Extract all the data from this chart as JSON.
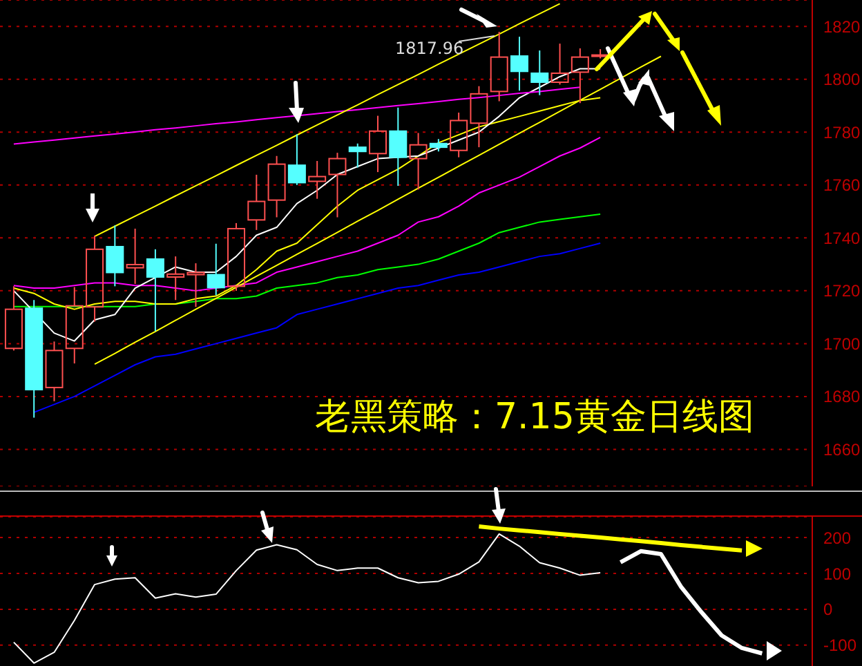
{
  "chart_data": [
    {
      "type": "candlestick",
      "title": "老黑策略：7.15黄金日线图",
      "categories": [
        null,
        null,
        null,
        null,
        null,
        null,
        null,
        null,
        null,
        null,
        null,
        null,
        null,
        null,
        null,
        null,
        null,
        null,
        null,
        null,
        null,
        null,
        null,
        null,
        null,
        null,
        null,
        null,
        null,
        null,
        null,
        null,
        null,
        null,
        null,
        null,
        null,
        null,
        null,
        null
      ],
      "ohlc": [
        [
          1698.2,
          1721.7,
          1697.4,
          1713.0
        ],
        [
          1713.4,
          1716.5,
          1672.0,
          1682.6
        ],
        [
          1683.4,
          1700.8,
          1678.2,
          1697.4
        ],
        [
          1698.2,
          1721.4,
          1692.5,
          1714.3
        ],
        [
          1713.9,
          1740.9,
          1708.3,
          1735.7
        ],
        [
          1736.7,
          1744.7,
          1721.7,
          1726.9
        ],
        [
          1728.7,
          1743.5,
          1722.6,
          1729.9
        ],
        [
          1732.0,
          1735.7,
          1704.7,
          1725.2
        ],
        [
          1725.2,
          1733.0,
          1716.5,
          1726.3
        ],
        [
          1726.1,
          1730.4,
          1713.9,
          1726.9
        ],
        [
          1726.1,
          1737.8,
          1718.3,
          1721.2
        ],
        [
          1721.7,
          1745.6,
          1720.0,
          1743.5
        ],
        [
          1746.8,
          1763.9,
          1743.0,
          1753.8
        ],
        [
          1754.3,
          1771.0,
          1747.8,
          1767.9
        ],
        [
          1767.5,
          1779.2,
          1760.0,
          1760.9
        ],
        [
          1761.4,
          1769.1,
          1754.8,
          1763.2
        ],
        [
          1764.0,
          1772.2,
          1747.8,
          1770.0
        ],
        [
          1774.3,
          1775.7,
          1766.6,
          1772.7
        ],
        [
          1771.9,
          1786.2,
          1764.9,
          1780.4
        ],
        [
          1780.4,
          1789.3,
          1759.7,
          1770.5
        ],
        [
          1770.0,
          1779.7,
          1758.3,
          1775.2
        ],
        [
          1775.7,
          1777.4,
          1772.7,
          1774.3
        ],
        [
          1773.1,
          1787.4,
          1770.5,
          1784.4
        ],
        [
          1783.4,
          1797.4,
          1774.3,
          1794.5
        ],
        [
          1795.4,
          1817.96,
          1791.7,
          1808.4
        ],
        [
          1808.8,
          1816.1,
          1795.7,
          1803.0
        ],
        [
          1802.3,
          1810.9,
          1794.0,
          1798.9
        ],
        [
          1798.9,
          1813.5,
          1798.0,
          1802.3
        ],
        [
          1802.7,
          1811.7,
          1791.0,
          1808.4
        ],
        [
          1809.0,
          1811.4,
          1807.9,
          1809.2
        ],
        null,
        null,
        null,
        null,
        null,
        null,
        null,
        null,
        null,
        null
      ],
      "colors": [
        "#ff5050",
        "#55ffff",
        "#ff5050",
        "#ff5050",
        "#ff5050",
        "#55ffff",
        "#ff5050",
        "#55ffff",
        "#ff5050",
        "#ff5050",
        "#55ffff",
        "#ff5050",
        "#ff5050",
        "#ff5050",
        "#55ffff",
        "#ff5050",
        "#ff5050",
        "#55ffff",
        "#ff5050",
        "#55ffff",
        "#ff5050",
        "#55ffff",
        "#ff5050",
        "#ff5050",
        "#ff5050",
        "#55ffff",
        "#55ffff",
        "#ff5050",
        "#ff5050",
        "#ff5050",
        null,
        null,
        null,
        null,
        null,
        null,
        null,
        null,
        null,
        null
      ],
      "series": [
        {
          "type": "line",
          "color": "#0000ff",
          "values": [
            null,
            1674,
            1677,
            1680,
            1684,
            1688,
            1692,
            1695,
            1696,
            1698,
            1700,
            1702,
            1704,
            1706,
            1711,
            1713,
            1715,
            1717,
            1719,
            1721,
            1722,
            1724,
            1726,
            1727,
            1729,
            1731,
            1733,
            1734,
            1736,
            1738,
            null,
            null,
            null,
            null,
            null,
            null,
            null,
            null,
            null,
            null
          ]
        },
        {
          "type": "line",
          "color": "#00ff00",
          "values": [
            1714,
            1714,
            1714,
            1714,
            1714,
            1714,
            1714,
            1715,
            1715,
            1716,
            1717,
            1717,
            1718,
            1721,
            1722,
            1723,
            1725,
            1726,
            1728,
            1729,
            1730,
            1732,
            1735,
            1738,
            1742,
            1744,
            1746,
            1747,
            1748,
            1749,
            null,
            null,
            null,
            null,
            null,
            null,
            null,
            null,
            null,
            null
          ]
        },
        {
          "type": "line",
          "color": "#ff00ff",
          "values": [
            1722,
            1721,
            1721,
            1722,
            1723,
            1723,
            1722,
            1722,
            1721,
            1720,
            1721,
            1722,
            1723,
            1727,
            1729,
            1731,
            1733,
            1735,
            1738,
            1741,
            1746,
            1748,
            1752,
            1757,
            1760,
            1763,
            1767,
            1771,
            1774,
            1778,
            null,
            null,
            null,
            null,
            null,
            null,
            null,
            null,
            null,
            null
          ]
        },
        {
          "type": "line",
          "color": "#ffff00",
          "values": [
            1721,
            1719,
            1715,
            1713,
            1715,
            1716,
            1716,
            1715,
            1715,
            1717,
            1718,
            1722,
            1728,
            1735,
            1738,
            1745,
            1752,
            1758,
            1762,
            1766,
            1771,
            1776,
            1779,
            1782,
            1784,
            1786,
            1788,
            1790,
            1792,
            1793,
            null,
            null,
            null,
            null,
            null,
            null,
            null,
            null,
            null,
            null
          ]
        },
        {
          "type": "line",
          "color": "#ffffff",
          "values": [
            1720,
            null,
            1704,
            1701,
            1709,
            1711,
            1721,
            null,
            1729,
            1727,
            1727,
            1733,
            1741,
            1744,
            1753,
            1758,
            1764,
            1767,
            1770,
            null,
            1771,
            1774,
            1777,
            1780,
            1786,
            1793,
            1797,
            1801,
            1804,
            1804,
            null,
            null,
            null,
            null,
            null,
            null,
            null,
            null,
            null,
            null
          ]
        },
        {
          "type": "line",
          "color": "#ff00ff",
          "values": [
            1775.5,
            1776.3,
            1777.0,
            1777.8,
            1778.6,
            1779.3,
            1780.1,
            1780.9,
            1781.6,
            1782.4,
            1783.2,
            1783.9,
            1784.7,
            1785.5,
            1786.2,
            1787.0,
            1787.8,
            1788.5,
            1789.3,
            1790.1,
            1790.8,
            1791.6,
            1792.4,
            1793.1,
            1793.9,
            1794.7,
            1795.4,
            1796.2,
            1797.0,
            null,
            null,
            null,
            null,
            null,
            null,
            null,
            null,
            null,
            null,
            null
          ]
        },
        {
          "type": "line",
          "color": "#ffff00",
          "values": [
            null,
            null,
            null,
            null,
            1740.6,
            1744.4,
            1748.2,
            1752.0,
            1755.9,
            1759.7,
            1763.5,
            1767.4,
            1771.2,
            1775.0,
            1778.9,
            1782.7,
            1786.5,
            1790.3,
            1794.2,
            1798.0,
            1801.8,
            1805.7,
            1809.5,
            1813.3,
            1817.1,
            1821.0,
            1824.8,
            1828.6,
            null,
            null,
            null,
            null,
            null,
            null,
            null,
            null,
            null,
            null,
            null,
            null
          ]
        },
        {
          "type": "line",
          "color": "#ffff00",
          "values": [
            null,
            null,
            null,
            null,
            1692.2,
            1696.3,
            1700.5,
            1704.6,
            1708.8,
            1713.0,
            1717.1,
            1721.3,
            1725.5,
            1729.6,
            1733.8,
            1737.9,
            1742.1,
            1746.3,
            1750.4,
            1754.6,
            1758.8,
            1762.9,
            1767.1,
            1771.2,
            1775.4,
            1779.6,
            1783.7,
            1787.9,
            1792.1,
            1796.2,
            1800.4,
            1804.6,
            1808.7,
            null,
            null,
            null,
            null,
            null,
            null,
            null
          ]
        }
      ],
      "annotations": [
        "1817.96"
      ],
      "ylim": [
        1646,
        1830
      ],
      "yticks": [
        1660,
        1680,
        1700,
        1720,
        1740,
        1760,
        1780,
        1800,
        1820
      ],
      "grid": "y",
      "tick_labels": "y"
    },
    {
      "type": "line",
      "categories": [
        null,
        null,
        null,
        null,
        null,
        null,
        null,
        null,
        null,
        null,
        null,
        null,
        null,
        null,
        null,
        null,
        null,
        null,
        null,
        null,
        null,
        null,
        null,
        null,
        null,
        null,
        null,
        null,
        null,
        null,
        null,
        null,
        null,
        null,
        null,
        null,
        null,
        null,
        null,
        null
      ],
      "series": [
        {
          "color": "#ffffff",
          "values": [
            -92,
            -150,
            -120,
            -31,
            69,
            84,
            88,
            31,
            43,
            34,
            42,
            108,
            165,
            180,
            166,
            125,
            108,
            115,
            115,
            88,
            74,
            78,
            98,
            132,
            210,
            176,
            130,
            115,
            95,
            102,
            null,
            null,
            null,
            null,
            null,
            null,
            null,
            null,
            null,
            null
          ]
        },
        {
          "color": "#ffff00",
          "values": [
            null,
            null,
            null,
            null,
            null,
            null,
            null,
            null,
            null,
            null,
            null,
            null,
            null,
            null,
            null,
            null,
            null,
            null,
            null,
            null,
            null,
            null,
            null,
            231,
            225,
            220,
            215,
            210,
            205,
            200,
            195,
            190,
            185,
            179,
            174,
            169,
            164,
            null,
            null,
            null
          ]
        },
        {
          "color": "#ffffff",
          "values": [
            null,
            null,
            null,
            null,
            null,
            null,
            null,
            null,
            null,
            null,
            null,
            null,
            null,
            null,
            null,
            null,
            null,
            null,
            null,
            null,
            null,
            null,
            null,
            null,
            null,
            null,
            null,
            null,
            null,
            null,
            131,
            162,
            154,
            62,
            -8,
            -73,
            -108,
            -123,
            null,
            null
          ]
        }
      ],
      "ylim": [
        -162,
        258
      ],
      "yticks": [
        -100,
        0,
        100,
        200
      ],
      "grid": "y",
      "tick_labels": "y"
    }
  ]
}
